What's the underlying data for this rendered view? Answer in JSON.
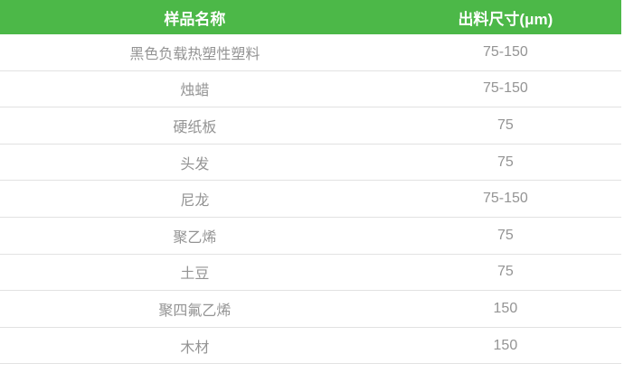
{
  "table": {
    "columns": [
      {
        "label": "样品名称"
      },
      {
        "label": "出料尺寸(μm)"
      }
    ],
    "rows": [
      {
        "sample": "黑色负载热塑性塑料",
        "size": "75-150"
      },
      {
        "sample": "烛蜡",
        "size": "75-150"
      },
      {
        "sample": "硬纸板",
        "size": "75"
      },
      {
        "sample": "头发",
        "size": "75"
      },
      {
        "sample": "尼龙",
        "size": "75-150"
      },
      {
        "sample": "聚乙烯",
        "size": "75"
      },
      {
        "sample": "土豆",
        "size": "75"
      },
      {
        "sample": "聚四氟乙烯",
        "size": "150"
      },
      {
        "sample": "木材",
        "size": "150"
      }
    ],
    "colors": {
      "header_bg": "#4cb848",
      "header_text": "#ffffff",
      "row_text": "#949494",
      "row_border": "#e2e2e2"
    }
  },
  "chart_data": {
    "type": "table",
    "title": "",
    "columns": [
      "样品名称",
      "出料尺寸(μm)"
    ],
    "rows": [
      [
        "黑色负载热塑性塑料",
        "75-150"
      ],
      [
        "烛蜡",
        "75-150"
      ],
      [
        "硬纸板",
        "75"
      ],
      [
        "头发",
        "75"
      ],
      [
        "尼龙",
        "75-150"
      ],
      [
        "聚乙烯",
        "75"
      ],
      [
        "土豆",
        "75"
      ],
      [
        "聚四氟乙烯",
        "150"
      ],
      [
        "木材",
        "150"
      ]
    ]
  }
}
